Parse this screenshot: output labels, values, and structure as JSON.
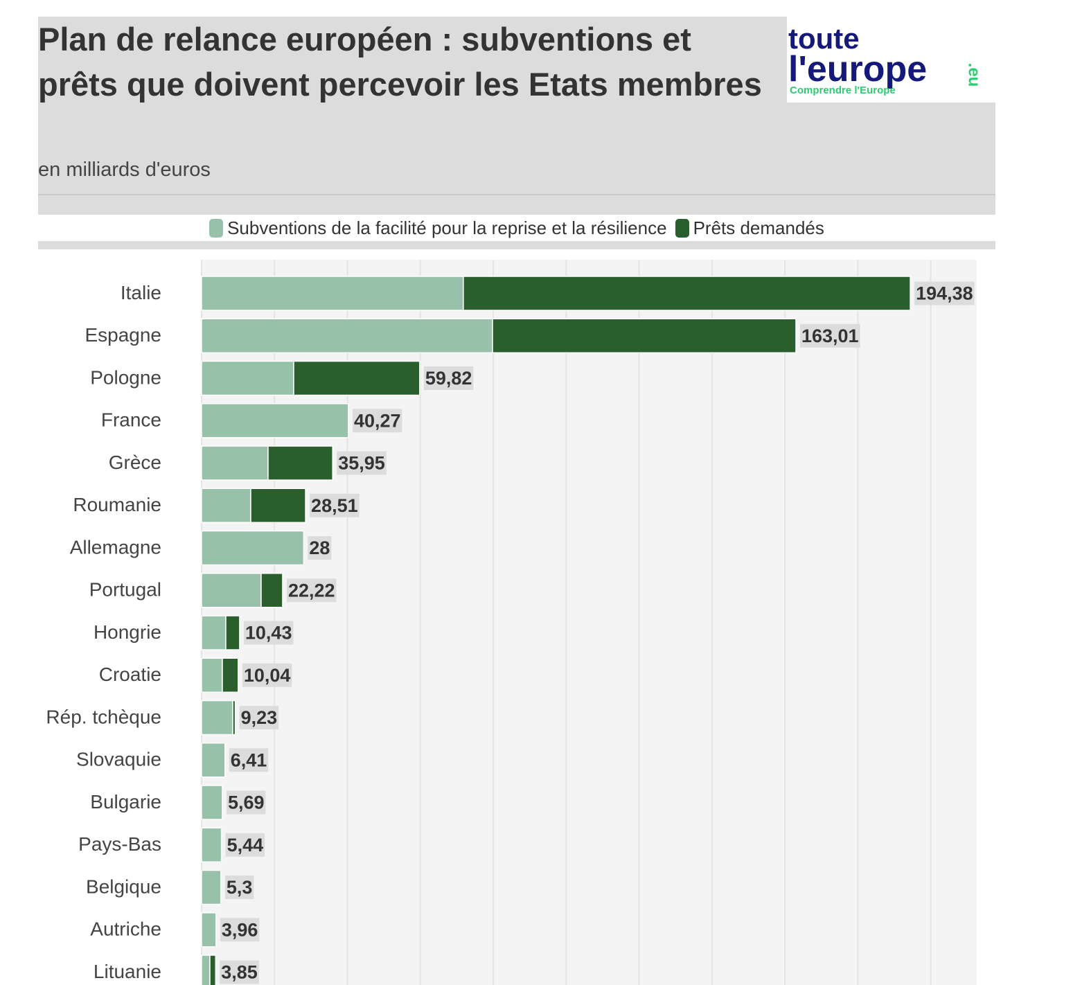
{
  "header": {
    "title": "Plan de relance européen : subventions et prêts que doivent percevoir les Etats membres",
    "subtitle": "en milliards d'euros",
    "logo": {
      "line1": "toute",
      "line2": "l'europe",
      "suffix": ".eu",
      "tagline": "Comprendre l'Europe"
    }
  },
  "chart_data": {
    "type": "stacked-barh",
    "categories": [
      "Italie",
      "Espagne",
      "Pologne",
      "France",
      "Grèce",
      "Roumanie",
      "Allemagne",
      "Portugal",
      "Hongrie",
      "Croatie",
      "Rép. tchèque",
      "Slovaquie",
      "Bulgarie",
      "Pays-Bas",
      "Belgique",
      "Autriche",
      "Lituanie"
    ],
    "series": [
      {
        "name": "Subventions de la facilité pour la reprise et la résilience",
        "color": "#98c1a9",
        "values": [
          71.8,
          79.8,
          25.27,
          40.27,
          18.24,
          13.49,
          28,
          16.34,
          6.65,
          5.7,
          8.55,
          6.41,
          5.69,
          5.44,
          5.3,
          3.96,
          2.28
        ]
      },
      {
        "name": "Prêts demandés",
        "color": "#2a5e2d",
        "values": [
          122.58,
          83.21,
          34.55,
          0,
          17.71,
          15.02,
          0,
          5.88,
          3.78,
          4.34,
          0.68,
          0,
          0,
          0,
          0,
          0,
          1.57
        ]
      }
    ],
    "totals": [
      194.38,
      163.01,
      59.82,
      40.27,
      35.95,
      28.51,
      28,
      22.22,
      10.43,
      10.04,
      9.23,
      6.41,
      5.69,
      5.44,
      5.3,
      3.96,
      3.85
    ],
    "total_labels": [
      "194,38",
      "163,01",
      "59,82",
      "40,27",
      "35,95",
      "28,51",
      "28",
      "22,22",
      "10,43",
      "10,04",
      "9,23",
      "6,41",
      "5,69",
      "5,44",
      "5,3",
      "3,96",
      "3,85"
    ],
    "xlim": [
      0,
      212.6
    ],
    "xticks": [
      0,
      20,
      40,
      60,
      80,
      100,
      120,
      140,
      160,
      180,
      200
    ],
    "grid": true
  }
}
